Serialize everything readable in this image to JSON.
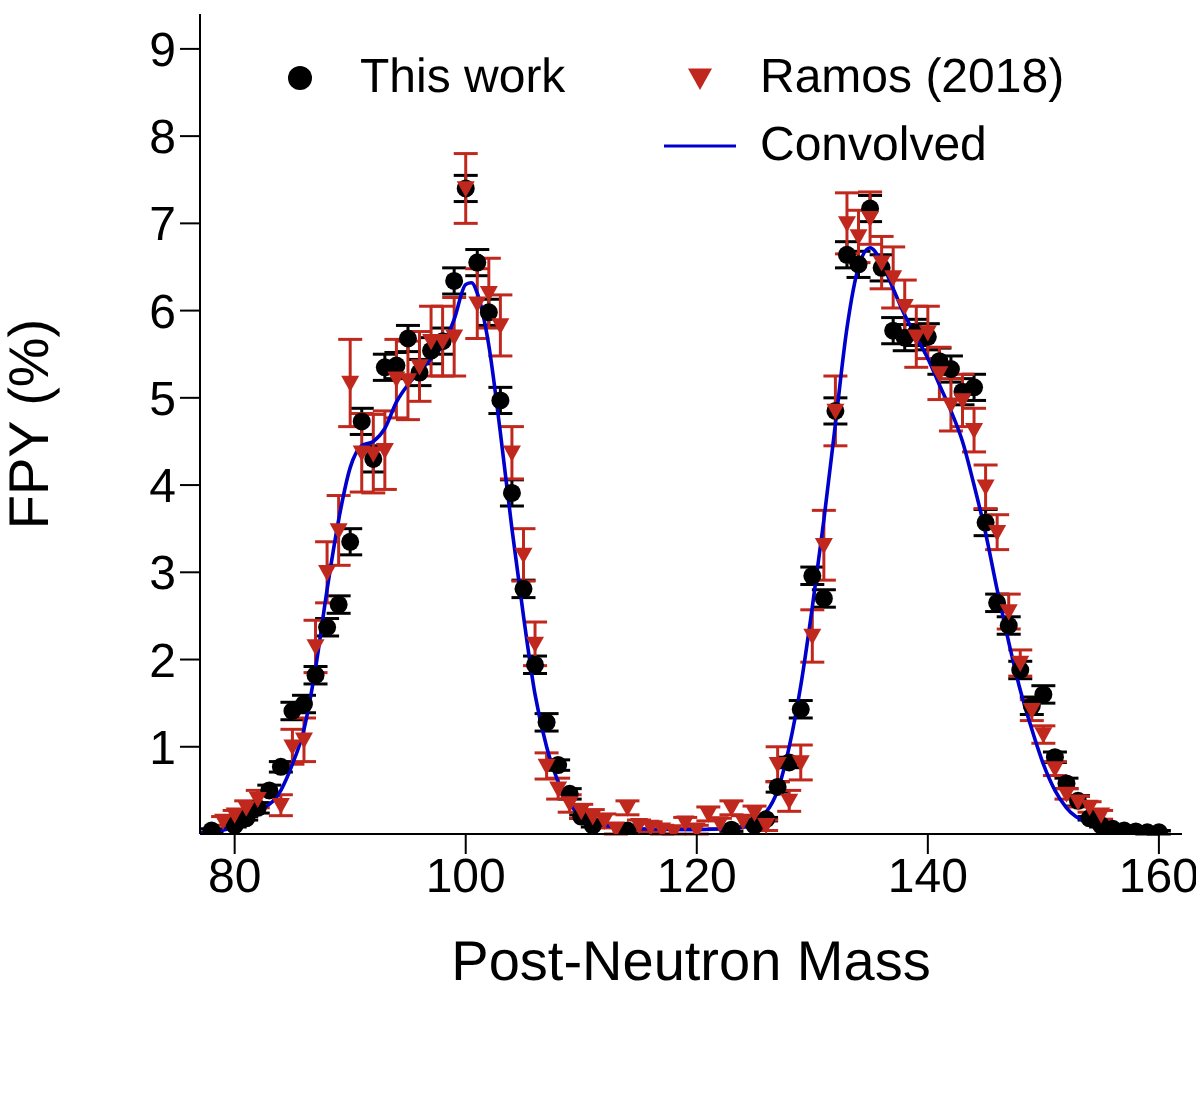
{
  "chart_data": {
    "type": "scatter",
    "xlabel": "Post-Neutron Mass",
    "ylabel": "FPY (%)",
    "xlim": [
      77,
      162
    ],
    "ylim": [
      0,
      9.4
    ],
    "xticks": [
      80,
      100,
      120,
      140,
      160
    ],
    "yticks": [
      1,
      2,
      3,
      4,
      5,
      6,
      7,
      8,
      9
    ],
    "grid": false,
    "legend": "top",
    "series": [
      {
        "name": "This work",
        "color": "#000000",
        "marker": "circle",
        "x": [
          78,
          80,
          81,
          82,
          83,
          84,
          85,
          86,
          87,
          88,
          89,
          90,
          91,
          92,
          93,
          94,
          95,
          96,
          97,
          98,
          99,
          100,
          101,
          102,
          103,
          104,
          105,
          106,
          107,
          108,
          109,
          110,
          111,
          114,
          123,
          125,
          126,
          127,
          128,
          129,
          130,
          131,
          132,
          133,
          134,
          135,
          136,
          137,
          138,
          139,
          140,
          141,
          142,
          143,
          144,
          145,
          146,
          147,
          148,
          149,
          150,
          151,
          152,
          153,
          154,
          155,
          156,
          157,
          158,
          159,
          160
        ],
        "values": [
          0.04,
          0.1,
          0.18,
          0.3,
          0.5,
          0.77,
          1.41,
          1.49,
          1.82,
          2.37,
          2.63,
          3.35,
          4.73,
          4.3,
          5.35,
          5.37,
          5.68,
          5.29,
          5.54,
          5.65,
          6.34,
          7.4,
          6.55,
          5.98,
          4.97,
          3.91,
          2.81,
          1.94,
          1.28,
          0.79,
          0.46,
          0.2,
          0.1,
          0.04,
          0.05,
          0.1,
          0.17,
          0.54,
          0.82,
          1.43,
          2.96,
          2.7,
          4.85,
          6.64,
          6.53,
          7.17,
          6.49,
          5.77,
          5.69,
          5.75,
          5.7,
          5.42,
          5.33,
          5.07,
          5.12,
          3.57,
          2.65,
          2.39,
          1.88,
          1.47,
          1.6,
          0.88,
          0.58,
          0.38,
          0.18,
          0.1,
          0.06,
          0.04,
          0.03,
          0.02,
          0.02
        ],
        "errors": [
          0.02,
          0.02,
          0.02,
          0.06,
          0.06,
          0.06,
          0.1,
          0.1,
          0.1,
          0.1,
          0.1,
          0.15,
          0.15,
          0.15,
          0.15,
          0.15,
          0.15,
          0.15,
          0.15,
          0.15,
          0.15,
          0.15,
          0.15,
          0.15,
          0.15,
          0.15,
          0.1,
          0.1,
          0.1,
          0.06,
          0.06,
          0.02,
          0.02,
          0.02,
          0.02,
          0.02,
          0.02,
          0.06,
          0.06,
          0.1,
          0.1,
          0.1,
          0.15,
          0.15,
          0.15,
          0.15,
          0.15,
          0.15,
          0.15,
          0.15,
          0.15,
          0.15,
          0.15,
          0.15,
          0.15,
          0.15,
          0.1,
          0.1,
          0.1,
          0.1,
          0.1,
          0.06,
          0.06,
          0.06,
          0.02,
          0.02,
          0.02,
          0.02,
          0.02,
          0.02,
          0.02
        ]
      },
      {
        "name": "Ramos (2018)",
        "color": "#c0281e",
        "marker": "triangle",
        "x": [
          79,
          80,
          81,
          82,
          84,
          85,
          86,
          87,
          88,
          89,
          90,
          91,
          92,
          93,
          94,
          95,
          96,
          97,
          98,
          99,
          100,
          101,
          102,
          103,
          104,
          105,
          106,
          107,
          108,
          109,
          110,
          111,
          112,
          113,
          114,
          115,
          116,
          117,
          118,
          119,
          120,
          121,
          122,
          123,
          124,
          125,
          126,
          127,
          128,
          129,
          130,
          131,
          132,
          133,
          134,
          135,
          136,
          137,
          138,
          139,
          140,
          141,
          142,
          143,
          144,
          145,
          146,
          147,
          148,
          149,
          150,
          151,
          152,
          153,
          154,
          155
        ],
        "values": [
          0.15,
          0.22,
          0.3,
          0.4,
          0.33,
          1.0,
          1.08,
          2.15,
          3.0,
          3.48,
          5.17,
          4.37,
          4.36,
          4.4,
          5.22,
          5.2,
          5.36,
          5.65,
          5.65,
          5.7,
          7.4,
          6.08,
          6.2,
          5.83,
          4.37,
          3.2,
          2.18,
          0.78,
          0.52,
          0.35,
          0.26,
          0.2,
          0.15,
          0.06,
          0.3,
          0.1,
          0.08,
          0.05,
          0.03,
          0.13,
          0.05,
          0.23,
          0.12,
          0.3,
          0.15,
          0.24,
          0.1,
          0.8,
          0.38,
          0.82,
          2.27,
          3.31,
          4.85,
          7.0,
          6.85,
          7.06,
          6.55,
          6.38,
          6.05,
          5.7,
          5.75,
          5.28,
          4.92,
          4.97,
          4.63,
          3.98,
          3.46,
          2.55,
          1.96,
          1.42,
          1.14,
          0.75,
          0.46,
          0.37,
          0.31,
          0.22
        ],
        "errors": [
          0.05,
          0.05,
          0.08,
          0.1,
          0.12,
          0.2,
          0.25,
          0.3,
          0.35,
          0.4,
          0.5,
          0.45,
          0.45,
          0.45,
          0.45,
          0.45,
          0.4,
          0.4,
          0.4,
          0.45,
          0.4,
          0.4,
          0.4,
          0.35,
          0.3,
          0.3,
          0.25,
          0.15,
          0.12,
          0.1,
          0.08,
          0.08,
          0.08,
          0.06,
          0.08,
          0.06,
          0.06,
          0.05,
          0.03,
          0.06,
          0.05,
          0.08,
          0.06,
          0.08,
          0.06,
          0.08,
          0.06,
          0.2,
          0.12,
          0.2,
          0.3,
          0.4,
          0.4,
          0.35,
          0.3,
          0.3,
          0.3,
          0.35,
          0.3,
          0.35,
          0.3,
          0.3,
          0.3,
          0.3,
          0.25,
          0.25,
          0.2,
          0.2,
          0.15,
          0.12,
          0.1,
          0.08,
          0.06,
          0.06,
          0.06,
          0.05
        ]
      },
      {
        "name": "Convolved",
        "type": "line",
        "color": "#0000cc",
        "marker": "none",
        "x": [
          77,
          80,
          82,
          84,
          85,
          86,
          87,
          88,
          89,
          90,
          91,
          92,
          93,
          94,
          95,
          96,
          97,
          98,
          99,
          100,
          100.5,
          101,
          102,
          103,
          104,
          105,
          106,
          107,
          108,
          109,
          110,
          112,
          115,
          120,
          124,
          126,
          127,
          128,
          129,
          130,
          131,
          132,
          133,
          134,
          135,
          136,
          137,
          138,
          139,
          140,
          141,
          142,
          143,
          144,
          145,
          146,
          147,
          148,
          149,
          150,
          151,
          152,
          154,
          156,
          160
        ],
        "values": [
          0.01,
          0.08,
          0.25,
          0.5,
          0.8,
          1.2,
          1.9,
          2.8,
          3.6,
          4.2,
          4.45,
          4.5,
          4.65,
          4.95,
          5.15,
          5.3,
          5.45,
          5.6,
          5.9,
          6.3,
          6.32,
          6.2,
          5.6,
          4.6,
          3.5,
          2.5,
          1.6,
          1.0,
          0.6,
          0.35,
          0.2,
          0.1,
          0.06,
          0.05,
          0.08,
          0.25,
          0.5,
          1.0,
          1.7,
          2.6,
          3.6,
          4.7,
          5.8,
          6.5,
          6.72,
          6.55,
          6.25,
          5.95,
          5.7,
          5.45,
          5.15,
          4.85,
          4.5,
          4.0,
          3.45,
          2.8,
          2.2,
          1.65,
          1.2,
          0.8,
          0.5,
          0.3,
          0.12,
          0.04,
          0.01
        ]
      }
    ]
  }
}
